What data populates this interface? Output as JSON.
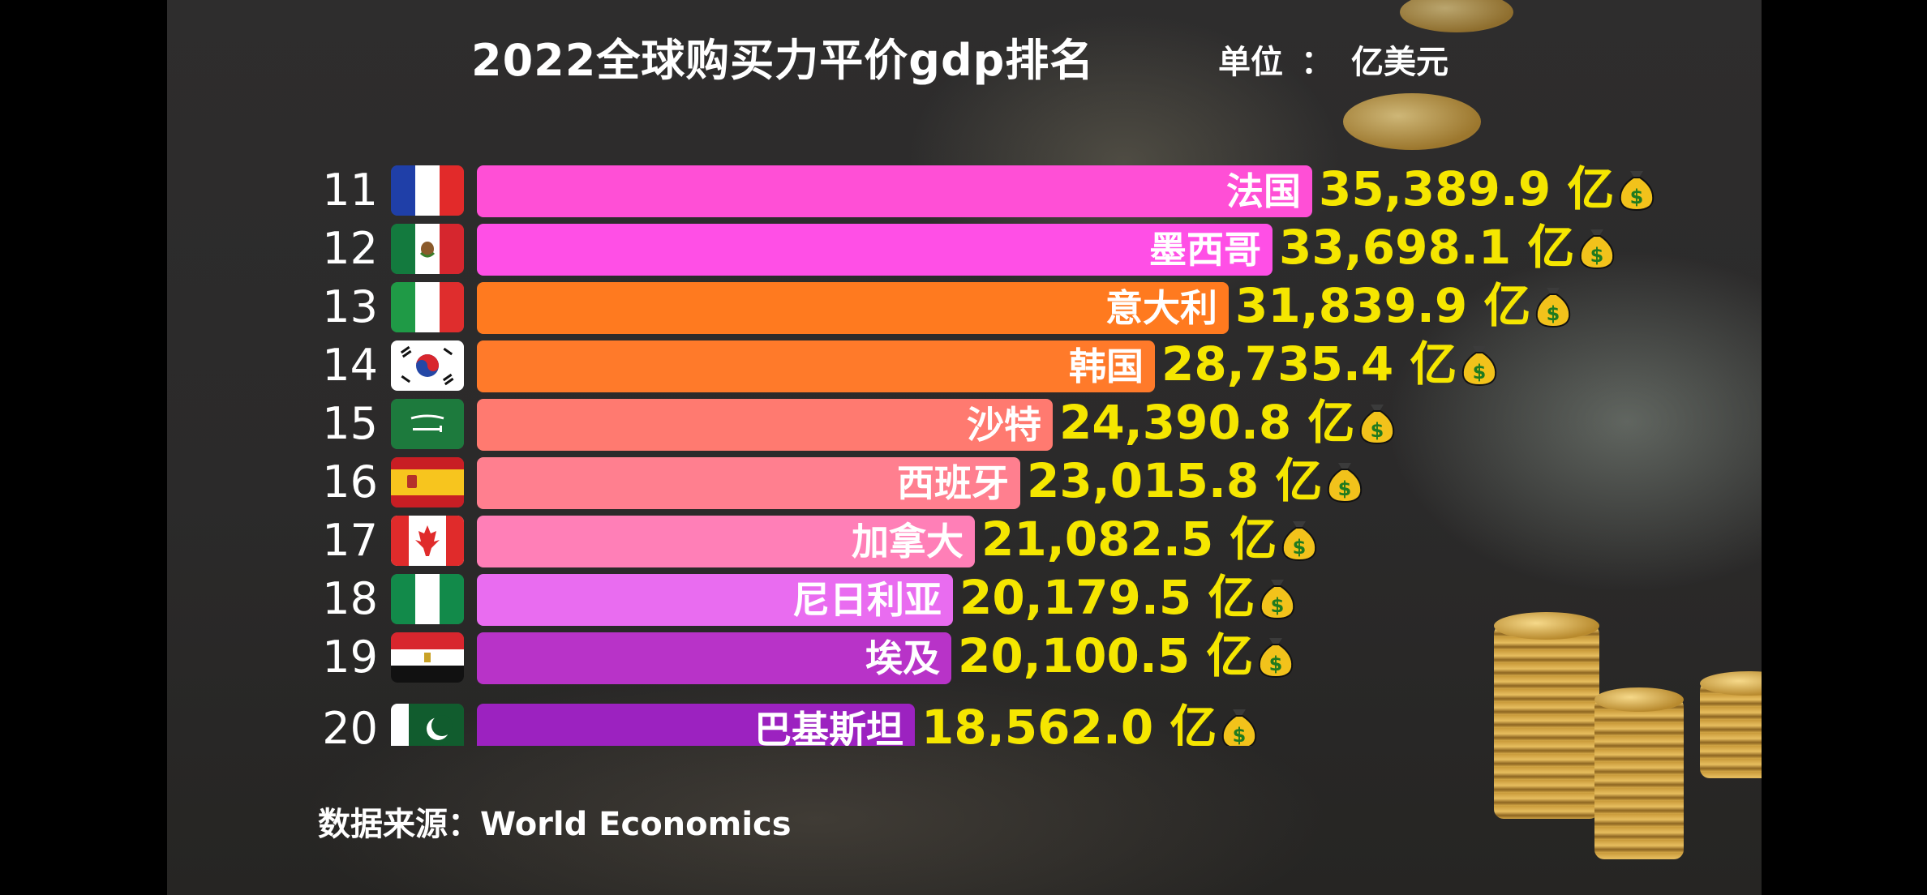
{
  "title": "2022全球购买力平价gdp排名",
  "unit": {
    "label": "单位",
    "sep": "：",
    "value": "亿美元"
  },
  "source": "数据来源：World Economics",
  "value_suffix": "亿",
  "chart_data": {
    "type": "bar",
    "orientation": "horizontal",
    "title": "2022全球购买力平价gdp排名",
    "unit": "亿美元",
    "rows": [
      {
        "rank": "11",
        "country": "法国",
        "value": 35389.9,
        "value_label": "35,389.9",
        "flag": "france-flag",
        "color": "#ff4fd6"
      },
      {
        "rank": "12",
        "country": "墨西哥",
        "value": 33698.1,
        "value_label": "33,698.1",
        "flag": "mexico-flag",
        "color": "#ff4fe6"
      },
      {
        "rank": "13",
        "country": "意大利",
        "value": 31839.9,
        "value_label": "31,839.9",
        "flag": "italy-flag",
        "color": "#ff7a1f"
      },
      {
        "rank": "14",
        "country": "韩国",
        "value": 28735.4,
        "value_label": "28,735.4",
        "flag": "south-korea-flag",
        "color": "#ff7a2a"
      },
      {
        "rank": "15",
        "country": "沙特",
        "value": 24390.8,
        "value_label": "24,390.8",
        "flag": "saudi-arabia-flag",
        "color": "#ff7a70"
      },
      {
        "rank": "16",
        "country": "西班牙",
        "value": 23015.8,
        "value_label": "23,015.8",
        "flag": "spain-flag",
        "color": "#ff7f8f"
      },
      {
        "rank": "17",
        "country": "加拿大",
        "value": 21082.5,
        "value_label": "21,082.5",
        "flag": "canada-flag",
        "color": "#ff7fb7"
      },
      {
        "rank": "18",
        "country": "尼日利亚",
        "value": 20179.5,
        "value_label": "20,179.5",
        "flag": "nigeria-flag",
        "color": "#e96cf0"
      },
      {
        "rank": "19",
        "country": "埃及",
        "value": 20100.5,
        "value_label": "20,100.5",
        "flag": "egypt-flag",
        "color": "#b833c8"
      },
      {
        "rank": "20",
        "country": "巴基斯坦",
        "value": 18562.0,
        "value_label": "18,562.0",
        "flag": "pakistan-flag",
        "color": "#9c22c0"
      }
    ]
  }
}
